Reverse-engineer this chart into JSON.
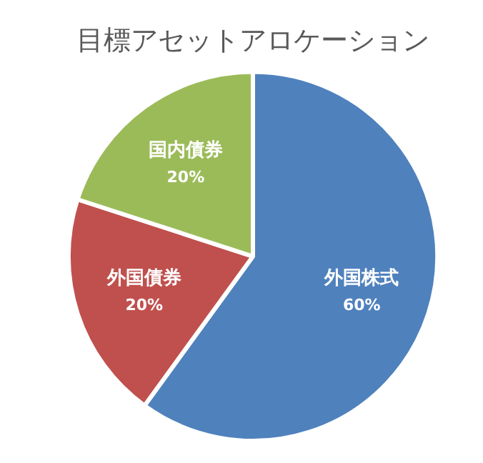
{
  "chart_data": {
    "type": "pie",
    "title": "目標アセットアロケーション",
    "categories": [
      "外国株式",
      "外国債券",
      "国内債券"
    ],
    "values": [
      60,
      20,
      20
    ],
    "colors": [
      "#4f81bd",
      "#c0504d",
      "#9bbb59"
    ],
    "value_labels": [
      "60%",
      "20%",
      "20%"
    ]
  }
}
